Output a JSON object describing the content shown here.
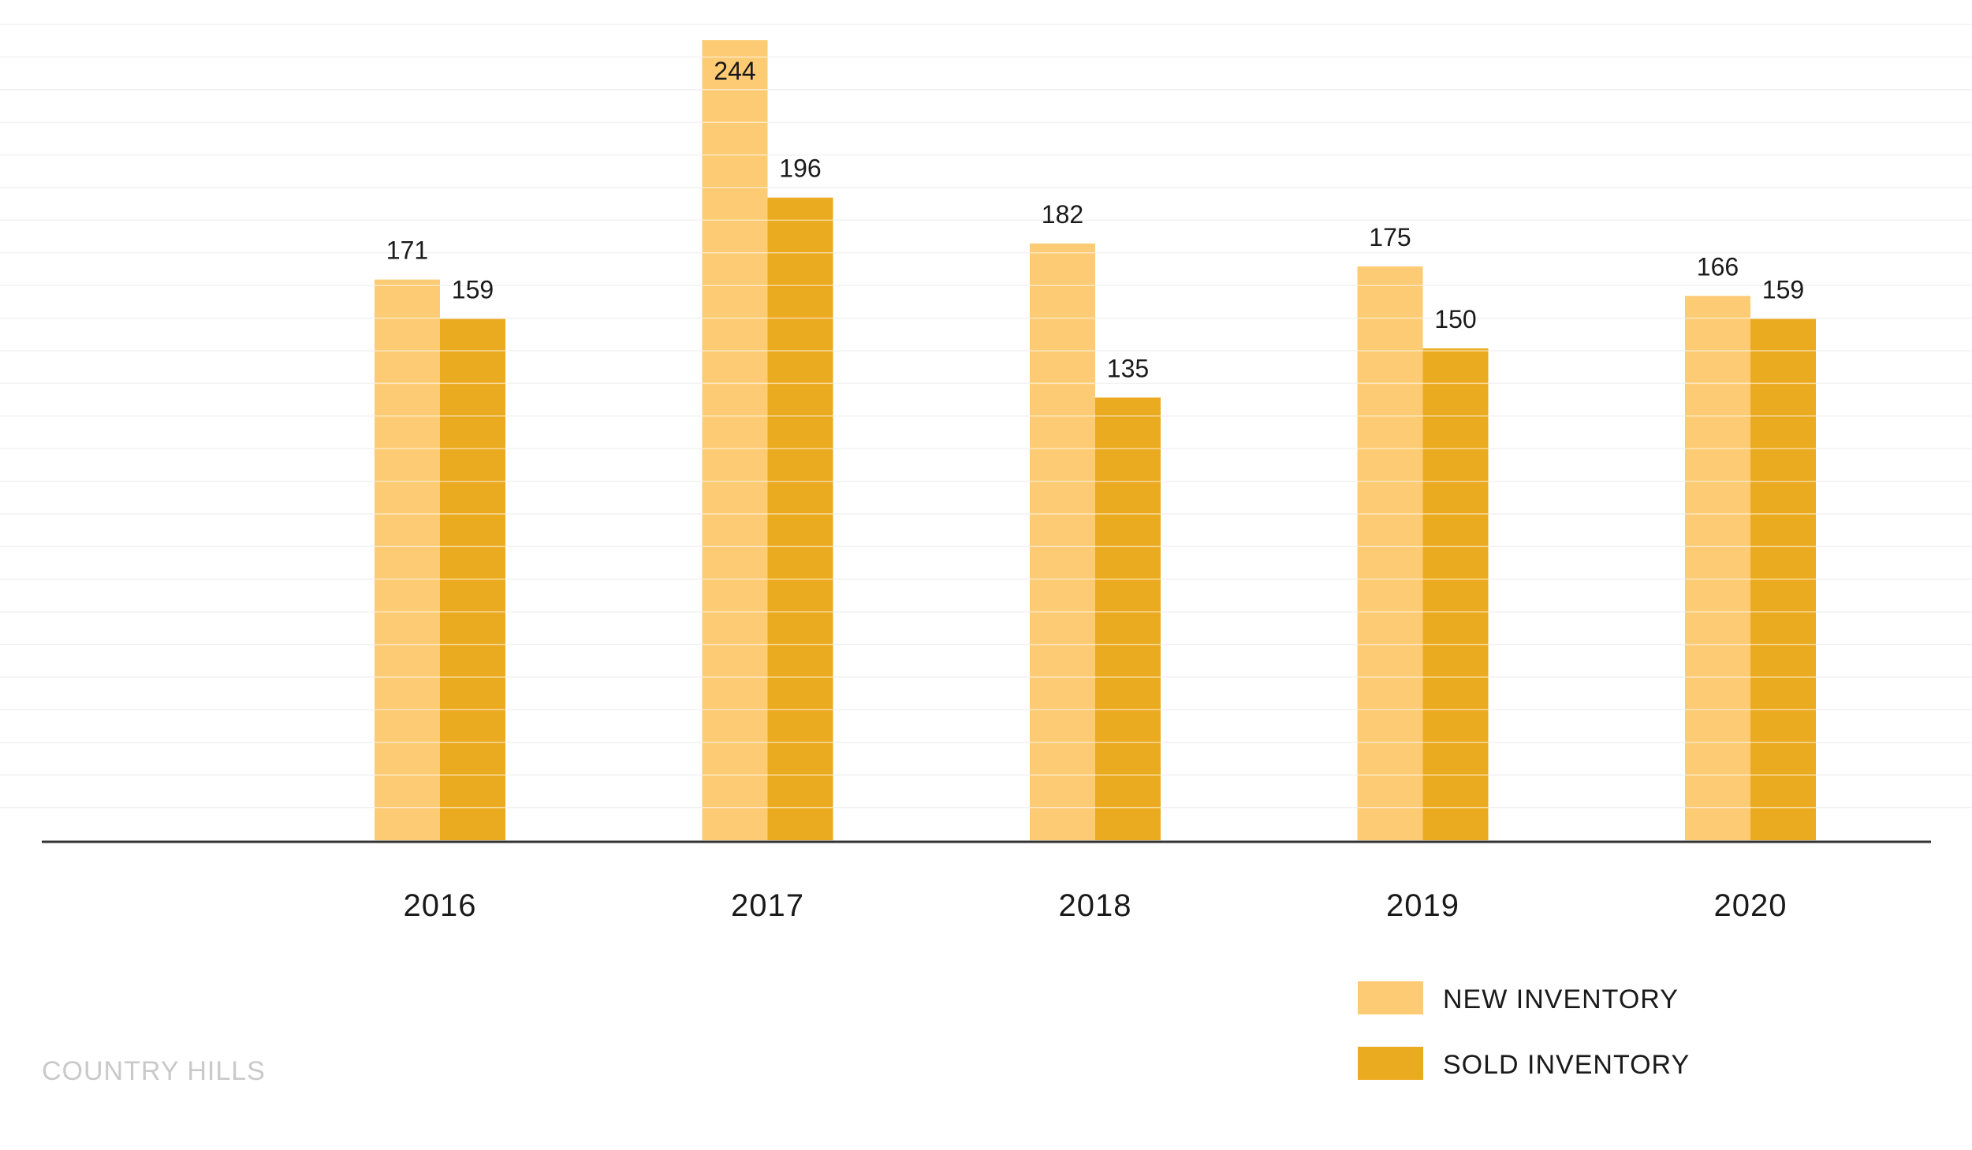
{
  "chart_data": {
    "type": "bar",
    "categories": [
      "2016",
      "2017",
      "2018",
      "2019",
      "2020"
    ],
    "series": [
      {
        "name": "NEW INVENTORY",
        "color": "#fdcb73",
        "values": [
          171,
          244,
          182,
          175,
          166
        ]
      },
      {
        "name": "SOLD INVENTORY",
        "color": "#ebab21",
        "values": [
          159,
          196,
          135,
          150,
          159
        ]
      }
    ],
    "ylim": [
      0,
      244
    ],
    "grid": true,
    "legend_position": "bottom-right",
    "data_labels": true
  },
  "footer": {
    "label": "COUNTRY HILLS"
  }
}
